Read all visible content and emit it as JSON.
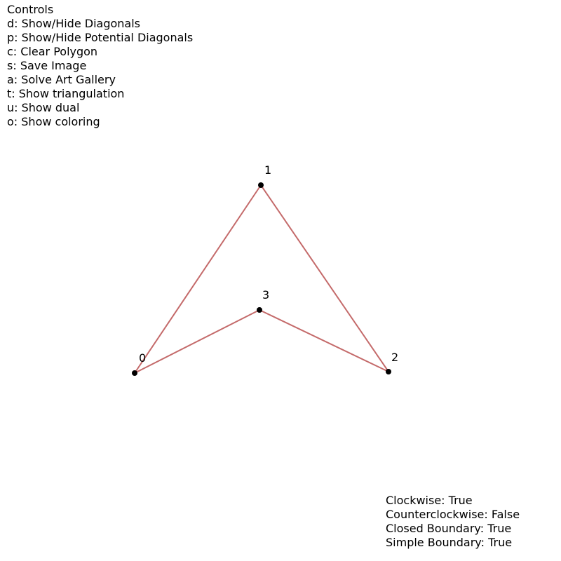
{
  "controls": {
    "title": "Controls",
    "items": [
      "d: Show/Hide Diagonals",
      "p: Show/Hide Potential Diagonals",
      "c: Clear Polygon",
      "s: Save Image",
      "a: Solve Art Gallery",
      "t: Show triangulation",
      "u: Show dual",
      "o: Show coloring"
    ]
  },
  "polygon": {
    "edge_color": "#c46a6a",
    "vertex_color": "#000000",
    "vertices": [
      {
        "label": "0"
      },
      {
        "label": "1"
      },
      {
        "label": "2"
      },
      {
        "label": "3"
      }
    ]
  },
  "status": {
    "clockwise": "Clockwise: True",
    "counterclockwise": "Counterclockwise: False",
    "closed_boundary": "Closed Boundary: True",
    "simple_boundary": "Simple Boundary: True"
  }
}
